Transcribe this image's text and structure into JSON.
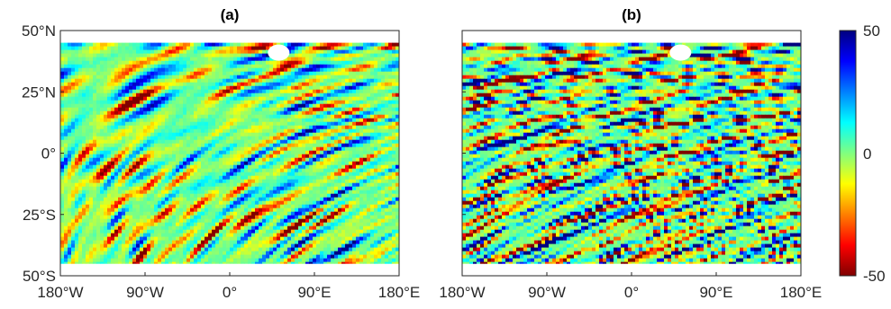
{
  "chart_data": [
    {
      "type": "heatmap",
      "title": "(a)",
      "xlabel": "",
      "ylabel": "",
      "x_ticks": [
        "180°W",
        "90°W",
        "0°",
        "90°E",
        "180°E"
      ],
      "y_ticks": [
        "50°N",
        "25°N",
        "0°",
        "25°S",
        "50°S"
      ],
      "xlim": [
        -180,
        180
      ],
      "ylim": [
        -50,
        50
      ],
      "data_extent": {
        "lon": [
          -180,
          180
        ],
        "lat": [
          -45,
          45
        ]
      },
      "seed": 17
    },
    {
      "type": "heatmap",
      "title": "(b)",
      "xlabel": "",
      "ylabel": "",
      "x_ticks": [
        "180°W",
        "90°W",
        "0°",
        "90°E",
        "180°E"
      ],
      "y_ticks": [
        "",
        "",
        "",
        "",
        ""
      ],
      "xlim": [
        -180,
        180
      ],
      "ylim": [
        -50,
        50
      ],
      "data_extent": {
        "lon": [
          -180,
          180
        ],
        "lat": [
          -45,
          45
        ]
      },
      "seed": 29
    }
  ],
  "colorbar": {
    "colormap": "jet",
    "range": [
      -50,
      50
    ],
    "tick_labels": [
      "50",
      "0",
      "-50"
    ]
  }
}
